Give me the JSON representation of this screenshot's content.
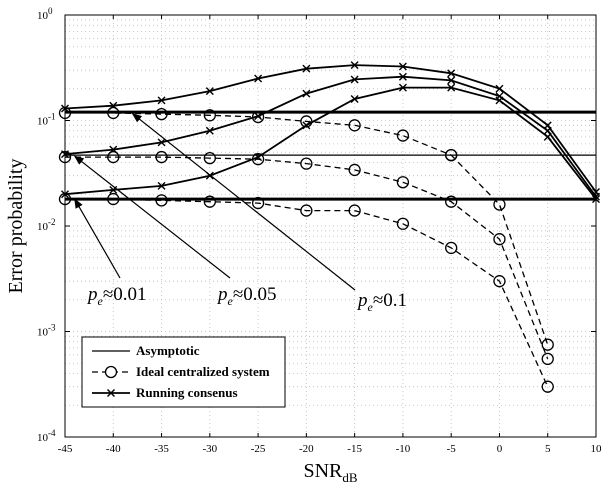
{
  "chart_data": {
    "type": "line",
    "xlabel": "SNR",
    "xlabel_subscript": "dB",
    "ylabel": "Error probability",
    "yscale": "log",
    "xlim": [
      -45,
      10
    ],
    "ylim": [
      0.0001,
      1
    ],
    "xticks": [
      -45,
      -40,
      -35,
      -30,
      -25,
      -20,
      -15,
      -10,
      -5,
      0,
      5,
      10
    ],
    "yticks": [
      {
        "value": 1,
        "base": "10",
        "exp": "0"
      },
      {
        "value": 0.1,
        "base": "10",
        "exp": "-1"
      },
      {
        "value": 0.01,
        "base": "10",
        "exp": "-2"
      },
      {
        "value": 0.001,
        "base": "10",
        "exp": "-3"
      },
      {
        "value": 0.0001,
        "base": "10",
        "exp": "-4"
      }
    ],
    "grid": true,
    "legend": {
      "placement": "bottom-left",
      "entries": [
        {
          "label": "Asymptotic",
          "style": "solid"
        },
        {
          "label": "Ideal centralized system",
          "style": "dashed-circle"
        },
        {
          "label": "Running consenus",
          "style": "solid-x"
        }
      ]
    },
    "series": [
      {
        "name": "Asymptotic (pe≈0.1)",
        "style": "asymptotic",
        "thick": true,
        "x": [
          -45,
          10
        ],
        "values": [
          0.12,
          0.12
        ]
      },
      {
        "name": "Asymptotic (pe≈0.05)",
        "style": "asymptotic",
        "thick": false,
        "x": [
          -45,
          10
        ],
        "values": [
          0.047,
          0.047
        ]
      },
      {
        "name": "Asymptotic (pe≈0.01)",
        "style": "asymptotic",
        "thick": true,
        "x": [
          -45,
          10
        ],
        "values": [
          0.018,
          0.018
        ]
      },
      {
        "name": "Ideal centralized (pe≈0.1)",
        "style": "ideal",
        "x": [
          -45,
          -40,
          -35,
          -30,
          -25,
          -20,
          -15,
          -10,
          -5
        ],
        "values": [
          0.118,
          0.118,
          0.115,
          0.112,
          0.108,
          0.098,
          0.09,
          0.072,
          0.047
        ]
      },
      {
        "name": "Ideal centralized (pe≈0.05)",
        "style": "ideal",
        "x": [
          -45,
          -40,
          -35,
          -30,
          -25,
          -20,
          -15,
          -10,
          -5,
          0,
          5
        ],
        "values": [
          0.045,
          0.045,
          0.045,
          0.044,
          0.043,
          0.039,
          0.034,
          0.026,
          0.017,
          0.0075,
          0.00055
        ]
      },
      {
        "name": "Ideal centralized (pe≈0.01)",
        "style": "ideal",
        "x": [
          -45,
          -40,
          -35,
          -30,
          -25,
          -20,
          -15,
          -10,
          -5,
          0,
          5
        ],
        "values": [
          0.018,
          0.018,
          0.0175,
          0.017,
          0.0165,
          0.014,
          0.014,
          0.0105,
          0.0062,
          0.003,
          0.0003
        ]
      },
      {
        "name": "Ideal centralized (extra, pe≈0.1 tail)",
        "style": "ideal",
        "x": [
          -5,
          0,
          5
        ],
        "values": [
          0.047,
          0.016,
          0.00075
        ]
      },
      {
        "name": "Running consensus (pe≈0.1)",
        "style": "running",
        "x": [
          -45,
          -40,
          -35,
          -30,
          -25,
          -20,
          -15,
          -10,
          -5,
          0,
          5,
          10
        ],
        "values": [
          0.13,
          0.138,
          0.155,
          0.19,
          0.25,
          0.31,
          0.335,
          0.325,
          0.28,
          0.2,
          0.09,
          0.021
        ]
      },
      {
        "name": "Running consensus (pe≈0.05)",
        "style": "running",
        "x": [
          -45,
          -40,
          -35,
          -30,
          -25,
          -20,
          -15,
          -10,
          -5,
          0,
          5,
          10
        ],
        "values": [
          0.048,
          0.053,
          0.062,
          0.08,
          0.11,
          0.18,
          0.245,
          0.26,
          0.24,
          0.17,
          0.08,
          0.019
        ]
      },
      {
        "name": "Running consensus (pe≈0.01)",
        "style": "running",
        "x": [
          -45,
          -40,
          -35,
          -30,
          -25,
          -20,
          -15,
          -10,
          -5,
          0,
          5,
          10
        ],
        "values": [
          0.02,
          0.022,
          0.024,
          0.03,
          0.045,
          0.09,
          0.16,
          0.205,
          0.205,
          0.155,
          0.07,
          0.018
        ]
      }
    ],
    "annotations": [
      {
        "symbol": "p",
        "sub": "e",
        "text": "≈0.01",
        "arrow_to": [
          -44,
          0.018
        ]
      },
      {
        "symbol": "p",
        "sub": "e",
        "text": "≈0.05",
        "arrow_to": [
          -44,
          0.046
        ]
      },
      {
        "symbol": "p",
        "sub": "e",
        "text": "≈0.1",
        "arrow_to": [
          -38,
          0.116
        ]
      }
    ]
  }
}
